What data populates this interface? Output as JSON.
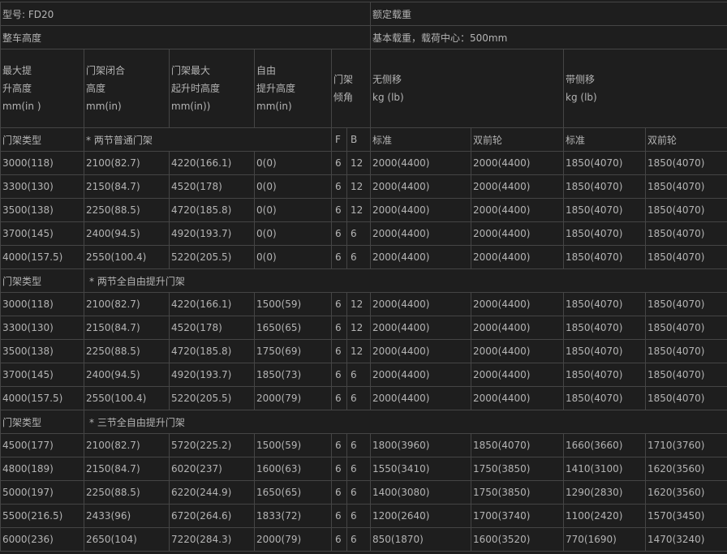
{
  "top": {
    "model": "型号: FD20",
    "rated_load": "额定载重",
    "overall_height": "整车高度",
    "basic_load": "基本载重，载荷中心：500mm"
  },
  "header": {
    "max_lift": [
      "最大提",
      "升高度",
      "mm(in )"
    ],
    "closed_height": [
      "门架闭合",
      "高度",
      "mm(in)"
    ],
    "max_extended": [
      "门架最大",
      "起升时高度",
      "mm(in))"
    ],
    "free_lift": [
      "自由",
      "提升高度",
      "mm(in)"
    ],
    "tilt": [
      "门架",
      "倾角"
    ],
    "no_sideshift": [
      "无侧移",
      "kg (lb)"
    ],
    "with_sideshift": [
      "带侧移",
      "kg (lb)"
    ]
  },
  "sub_header": {
    "type_label": "门架类型",
    "f": "F",
    "b": "B",
    "std1": "标准",
    "dual1": "双前轮",
    "std2": "标准",
    "dual2": "双前轮"
  },
  "sections": [
    {
      "type_label": "门架类型",
      "name": "* 两节普通门架",
      "rows": [
        [
          "3000(118)",
          "2100(82.7)",
          "4220(166.1)",
          "0(0)",
          "6",
          "12",
          "2000(4400)",
          "2000(4400)",
          "1850(4070)",
          "1850(4070)"
        ],
        [
          "3300(130)",
          "2150(84.7)",
          "4520(178)",
          "0(0)",
          "6",
          "12",
          "2000(4400)",
          "2000(4400)",
          "1850(4070)",
          "1850(4070)"
        ],
        [
          "3500(138)",
          "2250(88.5)",
          "4720(185.8)",
          "0(0)",
          "6",
          "12",
          "2000(4400)",
          "2000(4400)",
          "1850(4070)",
          "1850(4070)"
        ],
        [
          "3700(145)",
          "2400(94.5)",
          "4920(193.7)",
          "0(0)",
          "6",
          "6",
          "2000(4400)",
          "2000(4400)",
          "1850(4070)",
          "1850(4070)"
        ],
        [
          "4000(157.5)",
          "2550(100.4)",
          "5220(205.5)",
          "0(0)",
          "6",
          "6",
          "2000(4400)",
          "2000(4400)",
          "1850(4070)",
          "1850(4070)"
        ]
      ]
    },
    {
      "type_label": "门架类型",
      "name": "* 两节全自由提升门架",
      "rows": [
        [
          "3000(118)",
          "2100(82.7)",
          "4220(166.1)",
          "1500(59)",
          "6",
          "12",
          "2000(4400)",
          "2000(4400)",
          "1850(4070)",
          "1850(4070)"
        ],
        [
          "3300(130)",
          "2150(84.7)",
          "4520(178)",
          "1650(65)",
          "6",
          "12",
          "2000(4400)",
          "2000(4400)",
          "1850(4070)",
          "1850(4070)"
        ],
        [
          "3500(138)",
          "2250(88.5)",
          "4720(185.8)",
          "1750(69)",
          "6",
          "12",
          "2000(4400)",
          "2000(4400)",
          "1850(4070)",
          "1850(4070)"
        ],
        [
          "3700(145)",
          "2400(94.5)",
          "4920(193.7)",
          "1850(73)",
          "6",
          "6",
          "2000(4400)",
          "2000(4400)",
          "1850(4070)",
          "1850(4070)"
        ],
        [
          "4000(157.5)",
          "2550(100.4)",
          "5220(205.5)",
          "2000(79)",
          "6",
          "6",
          "2000(4400)",
          "2000(4400)",
          "1850(4070)",
          "1850(4070)"
        ]
      ]
    },
    {
      "type_label": "门架类型",
      "name": "* 三节全自由提升门架",
      "rows": [
        [
          "4500(177)",
          "2100(82.7)",
          "5720(225.2)",
          "1500(59)",
          "6",
          "6",
          "1800(3960)",
          "1850(4070)",
          "1660(3660)",
          "1710(3760)"
        ],
        [
          "4800(189)",
          "2150(84.7)",
          "6020(237)",
          "1600(63)",
          "6",
          "6",
          "1550(3410)",
          "1750(3850)",
          "1410(3100)",
          "1620(3560)"
        ],
        [
          "5000(197)",
          "2250(88.5)",
          "6220(244.9)",
          "1650(65)",
          "6",
          "6",
          "1400(3080)",
          "1750(3850)",
          "1290(2830)",
          "1620(3560)"
        ],
        [
          "5500(216.5)",
          "2433(96)",
          "6720(264.6)",
          "1833(72)",
          "6",
          "6",
          "1200(2640)",
          "1700(3740)",
          "1100(2420)",
          "1570(3450)"
        ],
        [
          "6000(236)",
          "2650(104)",
          "7220(284.3)",
          "2000(79)",
          "6",
          "6",
          "850(1870)",
          "1600(3520)",
          "770(1690)",
          "1470(3240)"
        ]
      ]
    }
  ]
}
